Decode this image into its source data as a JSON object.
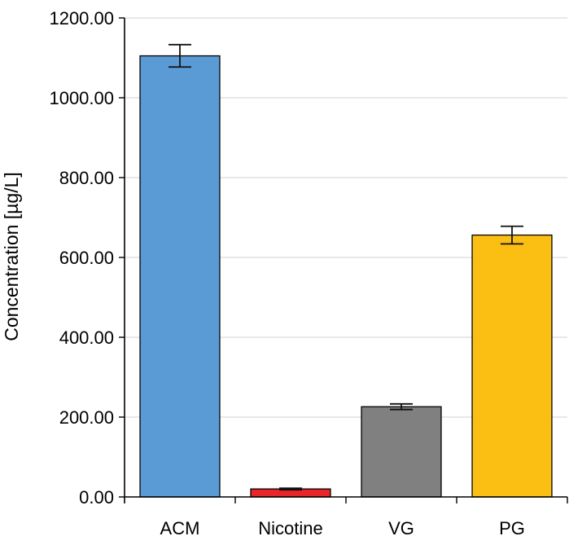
{
  "chart_data": {
    "type": "bar",
    "title": "",
    "xlabel": "",
    "ylabel": "Concentration [µg/L]",
    "ylim": [
      0,
      1200
    ],
    "y_ticks": [
      "0.00",
      "200.00",
      "400.00",
      "600.00",
      "800.00",
      "1000.00",
      "1200.00"
    ],
    "categories": [
      "ACM",
      "Nicotine",
      "VG",
      "PG"
    ],
    "values": [
      1105,
      20,
      226,
      656
    ],
    "errors": [
      28,
      2,
      7,
      22
    ],
    "colors": [
      "#5b9bd5",
      "#e8252b",
      "#808080",
      "#fbbe13"
    ],
    "grid": true,
    "legend": "none"
  }
}
